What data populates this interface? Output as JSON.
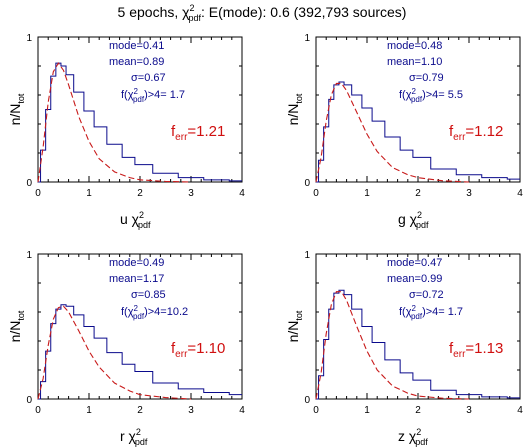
{
  "chart_data": [
    {
      "type": "line",
      "panel_id": "u",
      "band": "u",
      "xlabel_pdf": "pdf",
      "xlim": [
        0,
        4
      ],
      "ylim": [
        0,
        1
      ],
      "x_ticks": [
        "0",
        "1",
        "2",
        "3",
        "4"
      ],
      "y_ticks": [
        "0",
        "1"
      ],
      "ylabel_main": "n/N",
      "ylabel_sub": "tot",
      "stats": [
        {
          "key": "mode",
          "label": "mode=0.41"
        },
        {
          "key": "mean",
          "label": "mean=0.89"
        },
        {
          "key": "sigma",
          "label": "σ=0.67"
        },
        {
          "key": "frac",
          "label": "f(χ²pdf)>4= 1.7"
        }
      ],
      "ferr_label": "f",
      "ferr_sub": "err",
      "ferr_value": "=1.21",
      "mode": 0.41,
      "series": [
        {
          "values": [
            [
              0.0,
              0.0
            ],
            [
              0.1,
              0.22
            ],
            [
              0.2,
              0.5
            ],
            [
              0.3,
              0.73
            ],
            [
              0.4,
              0.82
            ],
            [
              0.5,
              0.8
            ],
            [
              0.6,
              0.74
            ],
            [
              0.8,
              0.62
            ],
            [
              1.0,
              0.49
            ],
            [
              1.2,
              0.38
            ],
            [
              1.5,
              0.26
            ],
            [
              1.8,
              0.17
            ],
            [
              2.0,
              0.12
            ],
            [
              2.5,
              0.06
            ],
            [
              3.0,
              0.03
            ],
            [
              3.5,
              0.015
            ],
            [
              4.0,
              0.008
            ]
          ]
        },
        {
          "values": [
            [
              0.0,
              0.0
            ],
            [
              0.1,
              0.24
            ],
            [
              0.2,
              0.55
            ],
            [
              0.3,
              0.76
            ],
            [
              0.4,
              0.82
            ],
            [
              0.5,
              0.77
            ],
            [
              0.6,
              0.67
            ],
            [
              0.8,
              0.45
            ],
            [
              1.0,
              0.28
            ],
            [
              1.2,
              0.16
            ],
            [
              1.5,
              0.07
            ],
            [
              1.8,
              0.03
            ],
            [
              2.0,
              0.015
            ],
            [
              2.5,
              0.004
            ],
            [
              3.0,
              0.0
            ]
          ]
        }
      ]
    },
    {
      "type": "line",
      "panel_id": "g",
      "band": "g",
      "xlabel_pdf": "pdf",
      "xlim": [
        0,
        4
      ],
      "ylim": [
        0,
        1
      ],
      "x_ticks": [
        "0",
        "1",
        "2",
        "3",
        "4"
      ],
      "y_ticks": [
        "0",
        "1"
      ],
      "ylabel_main": "n/N",
      "ylabel_sub": "tot",
      "stats": [
        {
          "key": "mode",
          "label": "mode=0.48"
        },
        {
          "key": "mean",
          "label": "mean=1.10"
        },
        {
          "key": "sigma",
          "label": "σ=0.79"
        },
        {
          "key": "frac",
          "label": "f(χ²pdf)>4= 5.5"
        }
      ],
      "ferr_label": "f",
      "ferr_sub": "err",
      "ferr_value": "=1.12",
      "mode": 0.48,
      "series": [
        {
          "values": [
            [
              0.0,
              0.0
            ],
            [
              0.1,
              0.15
            ],
            [
              0.2,
              0.38
            ],
            [
              0.3,
              0.57
            ],
            [
              0.4,
              0.67
            ],
            [
              0.5,
              0.69
            ],
            [
              0.6,
              0.67
            ],
            [
              0.8,
              0.6
            ],
            [
              1.0,
              0.51
            ],
            [
              1.2,
              0.42
            ],
            [
              1.5,
              0.31
            ],
            [
              1.8,
              0.22
            ],
            [
              2.0,
              0.17
            ],
            [
              2.5,
              0.09
            ],
            [
              3.0,
              0.05
            ],
            [
              3.5,
              0.03
            ],
            [
              4.0,
              0.02
            ]
          ]
        },
        {
          "values": [
            [
              0.0,
              0.0
            ],
            [
              0.1,
              0.17
            ],
            [
              0.2,
              0.42
            ],
            [
              0.3,
              0.6
            ],
            [
              0.4,
              0.68
            ],
            [
              0.5,
              0.68
            ],
            [
              0.6,
              0.63
            ],
            [
              0.8,
              0.48
            ],
            [
              1.0,
              0.33
            ],
            [
              1.2,
              0.21
            ],
            [
              1.5,
              0.1
            ],
            [
              1.8,
              0.05
            ],
            [
              2.0,
              0.03
            ],
            [
              2.5,
              0.008
            ],
            [
              3.0,
              0.0
            ]
          ]
        }
      ]
    },
    {
      "type": "line",
      "panel_id": "r",
      "band": "r",
      "xlabel_pdf": "pdf",
      "xlim": [
        0,
        4
      ],
      "ylim": [
        0,
        1
      ],
      "x_ticks": [
        "0",
        "1",
        "2",
        "3",
        "4"
      ],
      "y_ticks": [
        "0",
        "1"
      ],
      "ylabel_main": "n/N",
      "ylabel_sub": "tot",
      "stats": [
        {
          "key": "mode",
          "label": "mode=0.49"
        },
        {
          "key": "mean",
          "label": "mean=1.17"
        },
        {
          "key": "sigma",
          "label": "σ=0.85"
        },
        {
          "key": "frac",
          "label": "f(χ²pdf)>4=10.2"
        }
      ],
      "ferr_label": "f",
      "ferr_sub": "err",
      "ferr_value": "=1.10",
      "mode": 0.49,
      "series": [
        {
          "values": [
            [
              0.0,
              0.0
            ],
            [
              0.1,
              0.12
            ],
            [
              0.2,
              0.33
            ],
            [
              0.3,
              0.52
            ],
            [
              0.4,
              0.62
            ],
            [
              0.5,
              0.65
            ],
            [
              0.6,
              0.64
            ],
            [
              0.8,
              0.58
            ],
            [
              1.0,
              0.5
            ],
            [
              1.2,
              0.42
            ],
            [
              1.5,
              0.32
            ],
            [
              1.8,
              0.24
            ],
            [
              2.0,
              0.19
            ],
            [
              2.5,
              0.11
            ],
            [
              3.0,
              0.07
            ],
            [
              3.5,
              0.045
            ],
            [
              4.0,
              0.03
            ]
          ]
        },
        {
          "values": [
            [
              0.0,
              0.0
            ],
            [
              0.1,
              0.14
            ],
            [
              0.2,
              0.37
            ],
            [
              0.3,
              0.55
            ],
            [
              0.4,
              0.63
            ],
            [
              0.5,
              0.64
            ],
            [
              0.6,
              0.6
            ],
            [
              0.8,
              0.47
            ],
            [
              1.0,
              0.33
            ],
            [
              1.2,
              0.22
            ],
            [
              1.5,
              0.11
            ],
            [
              1.8,
              0.055
            ],
            [
              2.0,
              0.03
            ],
            [
              2.5,
              0.01
            ],
            [
              3.0,
              0.0
            ]
          ]
        }
      ]
    },
    {
      "type": "line",
      "panel_id": "z",
      "band": "z",
      "xlabel_pdf": "pdf",
      "xlim": [
        0,
        4
      ],
      "ylim": [
        0,
        1
      ],
      "x_ticks": [
        "0",
        "1",
        "2",
        "3",
        "4"
      ],
      "y_ticks": [
        "0",
        "1"
      ],
      "ylabel_main": "n/N",
      "ylabel_sub": "tot",
      "stats": [
        {
          "key": "mode",
          "label": "mode=0.47"
        },
        {
          "key": "mean",
          "label": "mean=0.99"
        },
        {
          "key": "sigma",
          "label": "σ=0.72"
        },
        {
          "key": "frac",
          "label": "f(χ²pdf)>4= 1.7"
        }
      ],
      "ferr_label": "f",
      "ferr_sub": "err",
      "ferr_value": "=1.13",
      "mode": 0.47,
      "series": [
        {
          "values": [
            [
              0.0,
              0.0
            ],
            [
              0.1,
              0.16
            ],
            [
              0.2,
              0.41
            ],
            [
              0.3,
              0.62
            ],
            [
              0.4,
              0.73
            ],
            [
              0.5,
              0.75
            ],
            [
              0.6,
              0.72
            ],
            [
              0.8,
              0.62
            ],
            [
              1.0,
              0.5
            ],
            [
              1.2,
              0.39
            ],
            [
              1.5,
              0.27
            ],
            [
              1.8,
              0.18
            ],
            [
              2.0,
              0.13
            ],
            [
              2.5,
              0.06
            ],
            [
              3.0,
              0.03
            ],
            [
              3.5,
              0.015
            ],
            [
              4.0,
              0.008
            ]
          ]
        },
        {
          "values": [
            [
              0.0,
              0.0
            ],
            [
              0.1,
              0.18
            ],
            [
              0.2,
              0.45
            ],
            [
              0.3,
              0.65
            ],
            [
              0.4,
              0.74
            ],
            [
              0.5,
              0.74
            ],
            [
              0.6,
              0.68
            ],
            [
              0.8,
              0.5
            ],
            [
              1.0,
              0.33
            ],
            [
              1.2,
              0.2
            ],
            [
              1.5,
              0.09
            ],
            [
              1.8,
              0.04
            ],
            [
              2.0,
              0.02
            ],
            [
              2.5,
              0.005
            ],
            [
              3.0,
              0.0
            ]
          ]
        }
      ]
    }
  ],
  "figure_title": {
    "prefix": "5 epochs, ",
    "chi": "χ",
    "sup": "2",
    "sub": "pdf",
    "suffix": ": E(mode): 0.6 (392,793 sources)"
  },
  "colors": {
    "histogram": "#0a0a8c",
    "model": "#c81a1a",
    "annotation": "#0a0a8c",
    "ferr": "#d01010"
  }
}
